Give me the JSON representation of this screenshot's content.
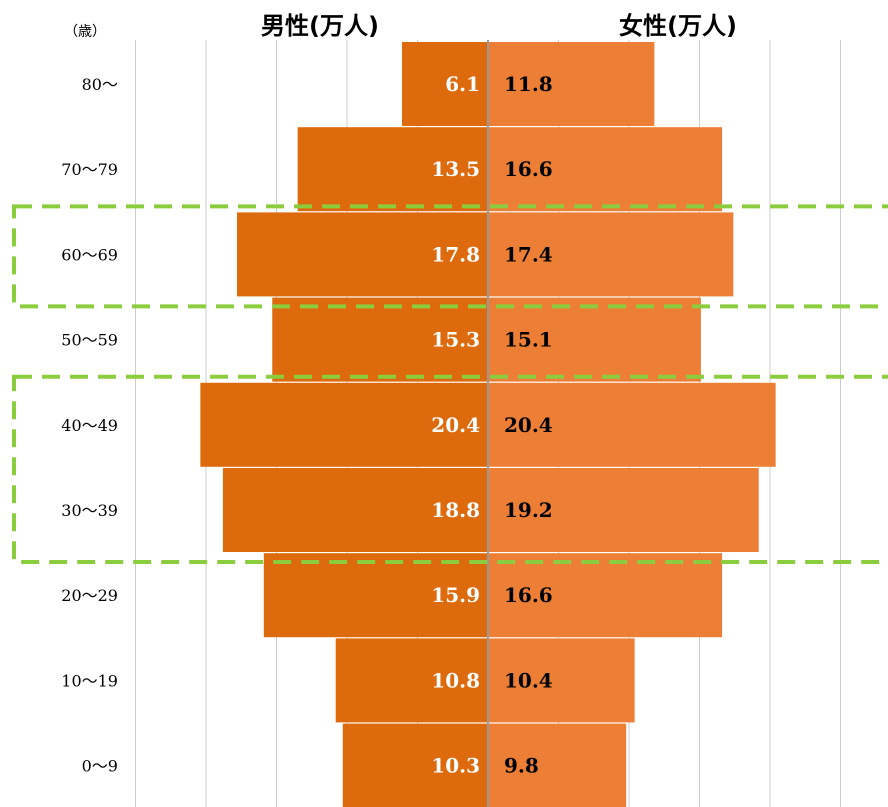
{
  "chart_data": {
    "type": "bar",
    "subtype": "population-pyramid",
    "unit_label": "（歳）",
    "left_title": "男性(万人)",
    "right_title": "女性(万人)",
    "categories": [
      "80〜",
      "70〜79",
      "60〜69",
      "50〜59",
      "40〜49",
      "30〜39",
      "20〜29",
      "10〜19",
      "0〜9"
    ],
    "series": [
      {
        "name": "男性(万人)",
        "values": [
          6.1,
          13.5,
          17.8,
          15.3,
          20.4,
          18.8,
          15.9,
          10.8,
          10.3
        ]
      },
      {
        "name": "女性(万人)",
        "values": [
          11.8,
          16.6,
          17.4,
          15.1,
          20.4,
          19.2,
          16.6,
          10.4,
          9.8
        ]
      }
    ],
    "xlim": [
      0,
      25
    ],
    "grid": true,
    "highlighted_groups": [
      [
        "60〜69"
      ],
      [
        "40〜49",
        "30〜39"
      ]
    ],
    "colors": {
      "male": "#dd6a0c",
      "female": "#ec7f35",
      "highlight": "#8ccc3f",
      "grid": "#cccccc",
      "axis": "#999999"
    }
  }
}
